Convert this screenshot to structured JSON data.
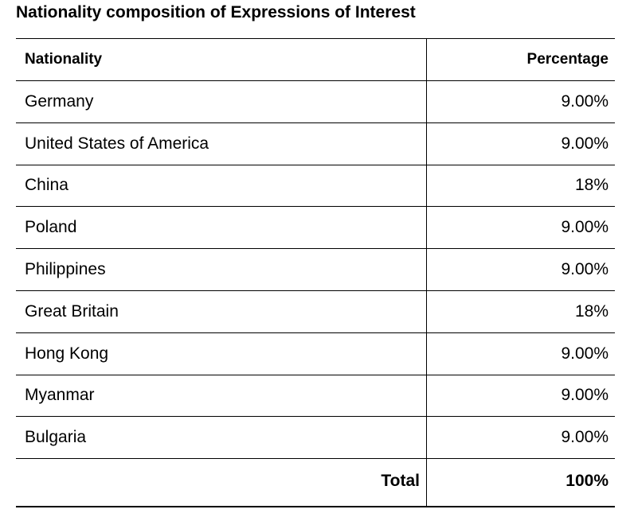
{
  "title": "Nationality composition of Expressions of Interest",
  "table": {
    "header": [
      "Nationality",
      "Percentage"
    ],
    "rows": [
      [
        "Germany",
        "9.00%"
      ],
      [
        "United States of America",
        "9.00%"
      ],
      [
        "China",
        "18%"
      ],
      [
        "Poland",
        "9.00%"
      ],
      [
        "Philippines",
        "9.00%"
      ],
      [
        "Great Britain",
        "18%"
      ],
      [
        "Hong Kong",
        "9.00%"
      ],
      [
        "Myanmar",
        "9.00%"
      ],
      [
        "Bulgaria",
        "9.00%"
      ]
    ],
    "total": [
      "Total",
      "100%"
    ]
  }
}
